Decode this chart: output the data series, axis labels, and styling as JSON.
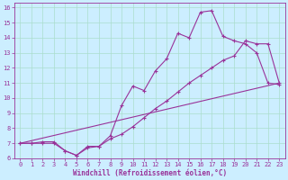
{
  "xlabel": "Windchill (Refroidissement éolien,°C)",
  "bg_color": "#cceeff",
  "grid_color": "#aaddcc",
  "line_color": "#993399",
  "xlim": [
    -0.5,
    23.5
  ],
  "ylim": [
    6,
    16.3
  ],
  "xticks": [
    0,
    1,
    2,
    3,
    4,
    5,
    6,
    7,
    8,
    9,
    10,
    11,
    12,
    13,
    14,
    15,
    16,
    17,
    18,
    19,
    20,
    21,
    22,
    23
  ],
  "yticks": [
    6,
    7,
    8,
    9,
    10,
    11,
    12,
    13,
    14,
    15,
    16
  ],
  "curve1_x": [
    0,
    1,
    2,
    3,
    4,
    5,
    6,
    7,
    8,
    9,
    10,
    11,
    12,
    13,
    14,
    15,
    16,
    17,
    18,
    19,
    20,
    21,
    22,
    23
  ],
  "curve1_y": [
    7.0,
    7.0,
    7.1,
    7.1,
    6.5,
    6.2,
    6.7,
    6.8,
    7.3,
    7.6,
    8.1,
    8.7,
    9.3,
    9.8,
    10.4,
    11.0,
    11.5,
    12.0,
    12.5,
    12.8,
    13.8,
    13.6,
    13.6,
    11.0
  ],
  "curve2_x": [
    0,
    1,
    2,
    3,
    4,
    5,
    6,
    7,
    8,
    9,
    10,
    11,
    12,
    13,
    14,
    15,
    16,
    17,
    18,
    19,
    20,
    21,
    22,
    23
  ],
  "curve2_y": [
    7.0,
    7.0,
    7.0,
    7.0,
    6.5,
    6.2,
    6.8,
    6.8,
    7.5,
    9.5,
    10.8,
    10.5,
    11.8,
    12.6,
    14.3,
    14.0,
    15.7,
    15.8,
    14.1,
    13.8,
    13.6,
    13.0,
    11.0,
    10.9
  ],
  "curve3_x": [
    0,
    23
  ],
  "curve3_y": [
    7.0,
    11.0
  ]
}
